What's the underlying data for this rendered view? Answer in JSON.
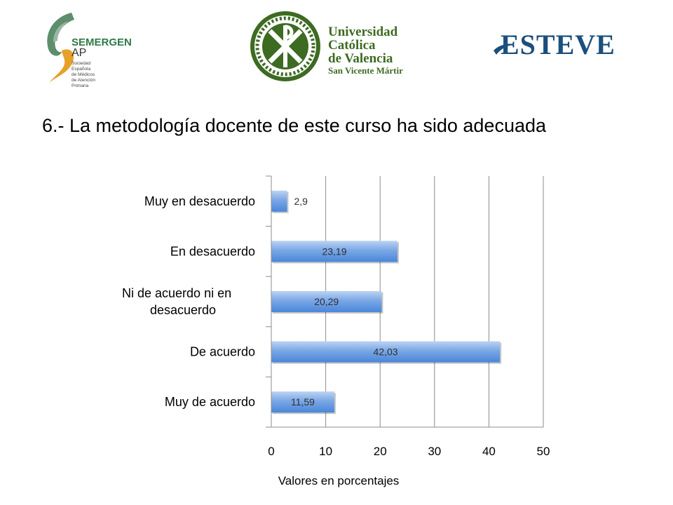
{
  "slide": {
    "title": "6.- La metodología docente de este curso ha sido adecuada"
  },
  "logos": {
    "semergen": {
      "name": "SEMERGEN",
      "suffix": "AP",
      "subtitle": [
        "Sociedad",
        "Española",
        "de Médicos",
        "de Atención",
        "Primaria"
      ]
    },
    "ucv": {
      "lines": [
        "Universidad",
        "Católica",
        "de Valencia"
      ],
      "subline": "San Vicente Mártir"
    },
    "esteve": {
      "name": "ESTEVE"
    }
  },
  "colors": {
    "bar_top": "#bcd3f2",
    "bar_mid": "#7aa7e6",
    "bar_bottom": "#4a86d9",
    "grid": "#8c8c8c",
    "axis": "#8c8c8c",
    "text": "#000000",
    "label_text": "#303030"
  },
  "chart_data": {
    "type": "bar",
    "orientation": "horizontal",
    "categories": [
      "Muy en desacuerdo",
      "En desacuerdo",
      "Ni de acuerdo ni en desacuerdo",
      "De acuerdo",
      "Muy de acuerdo"
    ],
    "category_lines": [
      [
        "Muy en desacuerdo"
      ],
      [
        "En desacuerdo"
      ],
      [
        "Ni de acuerdo ni en",
        "desacuerdo"
      ],
      [
        "De acuerdo"
      ],
      [
        "Muy de acuerdo"
      ]
    ],
    "values": [
      2.9,
      23.19,
      20.29,
      42.03,
      11.59
    ],
    "data_labels": [
      "2,9",
      "23,19",
      "20,29",
      "42,03",
      "11,59"
    ],
    "xticks": [
      0,
      10,
      20,
      30,
      40,
      50
    ],
    "xlim": [
      0,
      50
    ],
    "xlabel": "Valores en porcentajes",
    "title": "",
    "grid": true
  }
}
